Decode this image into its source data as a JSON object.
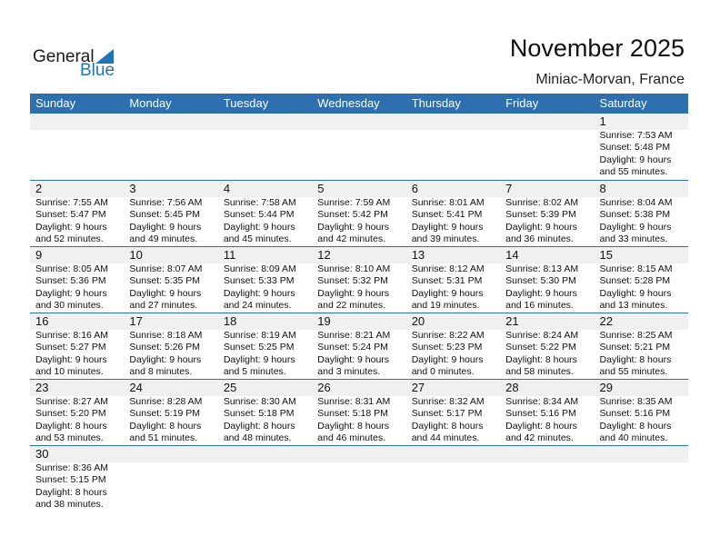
{
  "logo": {
    "text1": "General",
    "text2": "Blue"
  },
  "title": "November 2025",
  "location": "Miniac-Morvan, France",
  "colors": {
    "header": "#2E6FB0",
    "brand": "#1F74BC",
    "band": "#f0f0f0"
  },
  "weekdays": [
    "Sunday",
    "Monday",
    "Tuesday",
    "Wednesday",
    "Thursday",
    "Friday",
    "Saturday"
  ],
  "start_offset": 6,
  "days": [
    {
      "day": "1",
      "sunrise": "Sunrise: 7:53 AM",
      "sunset": "Sunset: 5:48 PM",
      "daylight1": "Daylight: 9 hours",
      "daylight2": "and 55 minutes."
    },
    {
      "day": "2",
      "sunrise": "Sunrise: 7:55 AM",
      "sunset": "Sunset: 5:47 PM",
      "daylight1": "Daylight: 9 hours",
      "daylight2": "and 52 minutes."
    },
    {
      "day": "3",
      "sunrise": "Sunrise: 7:56 AM",
      "sunset": "Sunset: 5:45 PM",
      "daylight1": "Daylight: 9 hours",
      "daylight2": "and 49 minutes."
    },
    {
      "day": "4",
      "sunrise": "Sunrise: 7:58 AM",
      "sunset": "Sunset: 5:44 PM",
      "daylight1": "Daylight: 9 hours",
      "daylight2": "and 45 minutes."
    },
    {
      "day": "5",
      "sunrise": "Sunrise: 7:59 AM",
      "sunset": "Sunset: 5:42 PM",
      "daylight1": "Daylight: 9 hours",
      "daylight2": "and 42 minutes."
    },
    {
      "day": "6",
      "sunrise": "Sunrise: 8:01 AM",
      "sunset": "Sunset: 5:41 PM",
      "daylight1": "Daylight: 9 hours",
      "daylight2": "and 39 minutes."
    },
    {
      "day": "7",
      "sunrise": "Sunrise: 8:02 AM",
      "sunset": "Sunset: 5:39 PM",
      "daylight1": "Daylight: 9 hours",
      "daylight2": "and 36 minutes."
    },
    {
      "day": "8",
      "sunrise": "Sunrise: 8:04 AM",
      "sunset": "Sunset: 5:38 PM",
      "daylight1": "Daylight: 9 hours",
      "daylight2": "and 33 minutes."
    },
    {
      "day": "9",
      "sunrise": "Sunrise: 8:05 AM",
      "sunset": "Sunset: 5:36 PM",
      "daylight1": "Daylight: 9 hours",
      "daylight2": "and 30 minutes."
    },
    {
      "day": "10",
      "sunrise": "Sunrise: 8:07 AM",
      "sunset": "Sunset: 5:35 PM",
      "daylight1": "Daylight: 9 hours",
      "daylight2": "and 27 minutes."
    },
    {
      "day": "11",
      "sunrise": "Sunrise: 8:09 AM",
      "sunset": "Sunset: 5:33 PM",
      "daylight1": "Daylight: 9 hours",
      "daylight2": "and 24 minutes."
    },
    {
      "day": "12",
      "sunrise": "Sunrise: 8:10 AM",
      "sunset": "Sunset: 5:32 PM",
      "daylight1": "Daylight: 9 hours",
      "daylight2": "and 22 minutes."
    },
    {
      "day": "13",
      "sunrise": "Sunrise: 8:12 AM",
      "sunset": "Sunset: 5:31 PM",
      "daylight1": "Daylight: 9 hours",
      "daylight2": "and 19 minutes."
    },
    {
      "day": "14",
      "sunrise": "Sunrise: 8:13 AM",
      "sunset": "Sunset: 5:30 PM",
      "daylight1": "Daylight: 9 hours",
      "daylight2": "and 16 minutes."
    },
    {
      "day": "15",
      "sunrise": "Sunrise: 8:15 AM",
      "sunset": "Sunset: 5:28 PM",
      "daylight1": "Daylight: 9 hours",
      "daylight2": "and 13 minutes."
    },
    {
      "day": "16",
      "sunrise": "Sunrise: 8:16 AM",
      "sunset": "Sunset: 5:27 PM",
      "daylight1": "Daylight: 9 hours",
      "daylight2": "and 10 minutes."
    },
    {
      "day": "17",
      "sunrise": "Sunrise: 8:18 AM",
      "sunset": "Sunset: 5:26 PM",
      "daylight1": "Daylight: 9 hours",
      "daylight2": "and 8 minutes."
    },
    {
      "day": "18",
      "sunrise": "Sunrise: 8:19 AM",
      "sunset": "Sunset: 5:25 PM",
      "daylight1": "Daylight: 9 hours",
      "daylight2": "and 5 minutes."
    },
    {
      "day": "19",
      "sunrise": "Sunrise: 8:21 AM",
      "sunset": "Sunset: 5:24 PM",
      "daylight1": "Daylight: 9 hours",
      "daylight2": "and 3 minutes."
    },
    {
      "day": "20",
      "sunrise": "Sunrise: 8:22 AM",
      "sunset": "Sunset: 5:23 PM",
      "daylight1": "Daylight: 9 hours",
      "daylight2": "and 0 minutes."
    },
    {
      "day": "21",
      "sunrise": "Sunrise: 8:24 AM",
      "sunset": "Sunset: 5:22 PM",
      "daylight1": "Daylight: 8 hours",
      "daylight2": "and 58 minutes."
    },
    {
      "day": "22",
      "sunrise": "Sunrise: 8:25 AM",
      "sunset": "Sunset: 5:21 PM",
      "daylight1": "Daylight: 8 hours",
      "daylight2": "and 55 minutes."
    },
    {
      "day": "23",
      "sunrise": "Sunrise: 8:27 AM",
      "sunset": "Sunset: 5:20 PM",
      "daylight1": "Daylight: 8 hours",
      "daylight2": "and 53 minutes."
    },
    {
      "day": "24",
      "sunrise": "Sunrise: 8:28 AM",
      "sunset": "Sunset: 5:19 PM",
      "daylight1": "Daylight: 8 hours",
      "daylight2": "and 51 minutes."
    },
    {
      "day": "25",
      "sunrise": "Sunrise: 8:30 AM",
      "sunset": "Sunset: 5:18 PM",
      "daylight1": "Daylight: 8 hours",
      "daylight2": "and 48 minutes."
    },
    {
      "day": "26",
      "sunrise": "Sunrise: 8:31 AM",
      "sunset": "Sunset: 5:18 PM",
      "daylight1": "Daylight: 8 hours",
      "daylight2": "and 46 minutes."
    },
    {
      "day": "27",
      "sunrise": "Sunrise: 8:32 AM",
      "sunset": "Sunset: 5:17 PM",
      "daylight1": "Daylight: 8 hours",
      "daylight2": "and 44 minutes."
    },
    {
      "day": "28",
      "sunrise": "Sunrise: 8:34 AM",
      "sunset": "Sunset: 5:16 PM",
      "daylight1": "Daylight: 8 hours",
      "daylight2": "and 42 minutes."
    },
    {
      "day": "29",
      "sunrise": "Sunrise: 8:35 AM",
      "sunset": "Sunset: 5:16 PM",
      "daylight1": "Daylight: 8 hours",
      "daylight2": "and 40 minutes."
    },
    {
      "day": "30",
      "sunrise": "Sunrise: 8:36 AM",
      "sunset": "Sunset: 5:15 PM",
      "daylight1": "Daylight: 8 hours",
      "daylight2": "and 38 minutes."
    }
  ]
}
